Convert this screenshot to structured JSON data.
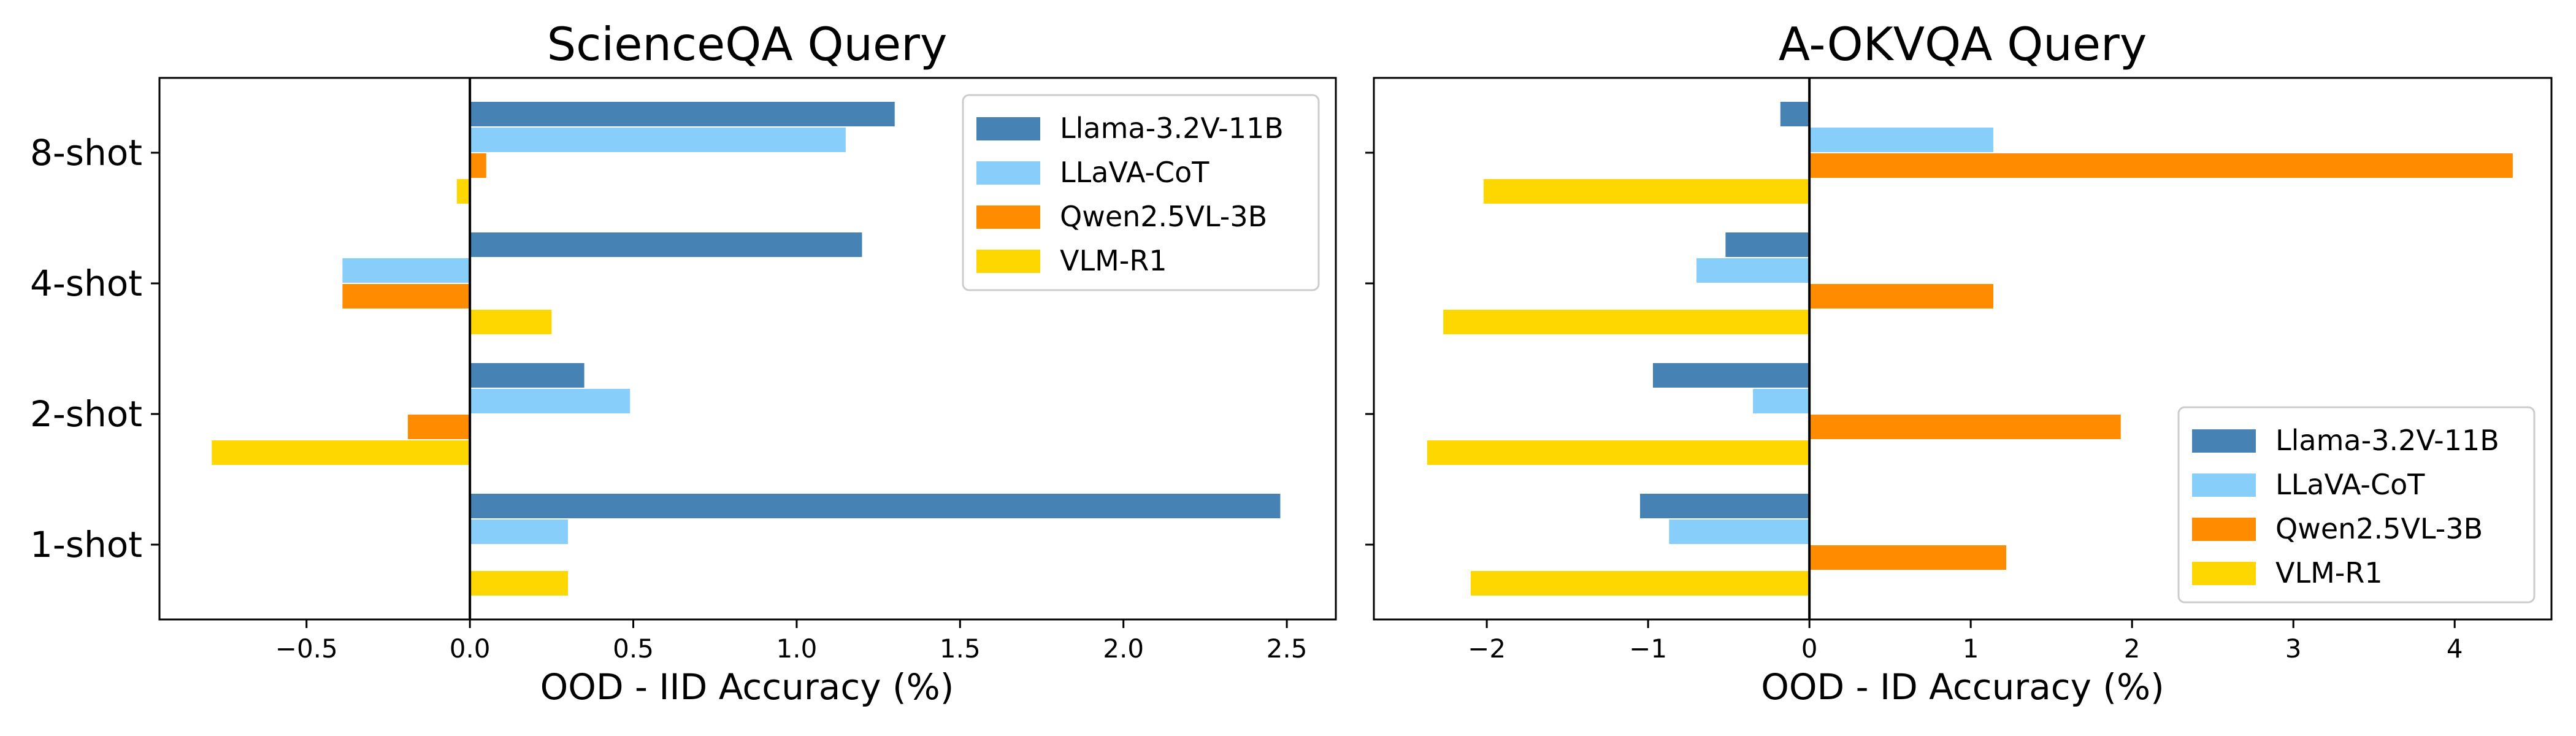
{
  "colors": {
    "Llama-3.2V-11B": "#4682B4",
    "LLaVA-CoT": "#87CEFA",
    "Qwen2.5VL-3B": "#FF8C00",
    "VLM-R1": "#FFD700"
  },
  "chart_data": [
    {
      "type": "bar",
      "orientation": "horizontal",
      "title": "ScienceQA Query",
      "xlabel": "OOD - IID Accuracy (%)",
      "ylabel": "",
      "categories": [
        "1-shot",
        "2-shot",
        "4-shot",
        "8-shot"
      ],
      "xlim": [
        -0.95,
        2.65
      ],
      "xticks": [
        -0.5,
        0.0,
        0.5,
        1.0,
        1.5,
        2.0,
        2.5
      ],
      "xtick_labels": [
        "−0.5",
        "0.0",
        "0.5",
        "1.0",
        "1.5",
        "2.0",
        "2.5"
      ],
      "legend_position": "top-right",
      "grid": false,
      "series": [
        {
          "name": "Llama-3.2V-11B",
          "values": [
            2.48,
            0.35,
            1.2,
            1.3
          ]
        },
        {
          "name": "LLaVA-CoT",
          "values": [
            0.3,
            0.49,
            -0.39,
            1.15
          ]
        },
        {
          "name": "Qwen2.5VL-3B",
          "values": [
            0.0,
            -0.19,
            -0.39,
            0.05
          ]
        },
        {
          "name": "VLM-R1",
          "values": [
            0.3,
            -0.79,
            0.25,
            -0.04
          ]
        }
      ]
    },
    {
      "type": "bar",
      "orientation": "horizontal",
      "title": "A-OKVQA Query",
      "xlabel": "OOD - ID Accuracy (%)",
      "ylabel": "",
      "categories": [
        "1-shot",
        "2-shot",
        "4-shot",
        "8-shot"
      ],
      "xlim": [
        -2.7,
        4.6
      ],
      "xticks": [
        -2,
        -1,
        0,
        1,
        2,
        3,
        4
      ],
      "xtick_labels": [
        "−2",
        "−1",
        "0",
        "1",
        "2",
        "3",
        "4"
      ],
      "legend_position": "bottom-right",
      "grid": false,
      "series": [
        {
          "name": "Llama-3.2V-11B",
          "values": [
            -1.05,
            -0.97,
            -0.52,
            -0.18
          ]
        },
        {
          "name": "LLaVA-CoT",
          "values": [
            -0.87,
            -0.35,
            -0.7,
            1.14
          ]
        },
        {
          "name": "Qwen2.5VL-3B",
          "values": [
            1.22,
            1.93,
            1.14,
            4.36
          ]
        },
        {
          "name": "VLM-R1",
          "values": [
            -2.1,
            -2.37,
            -2.27,
            -2.02
          ]
        }
      ]
    }
  ]
}
